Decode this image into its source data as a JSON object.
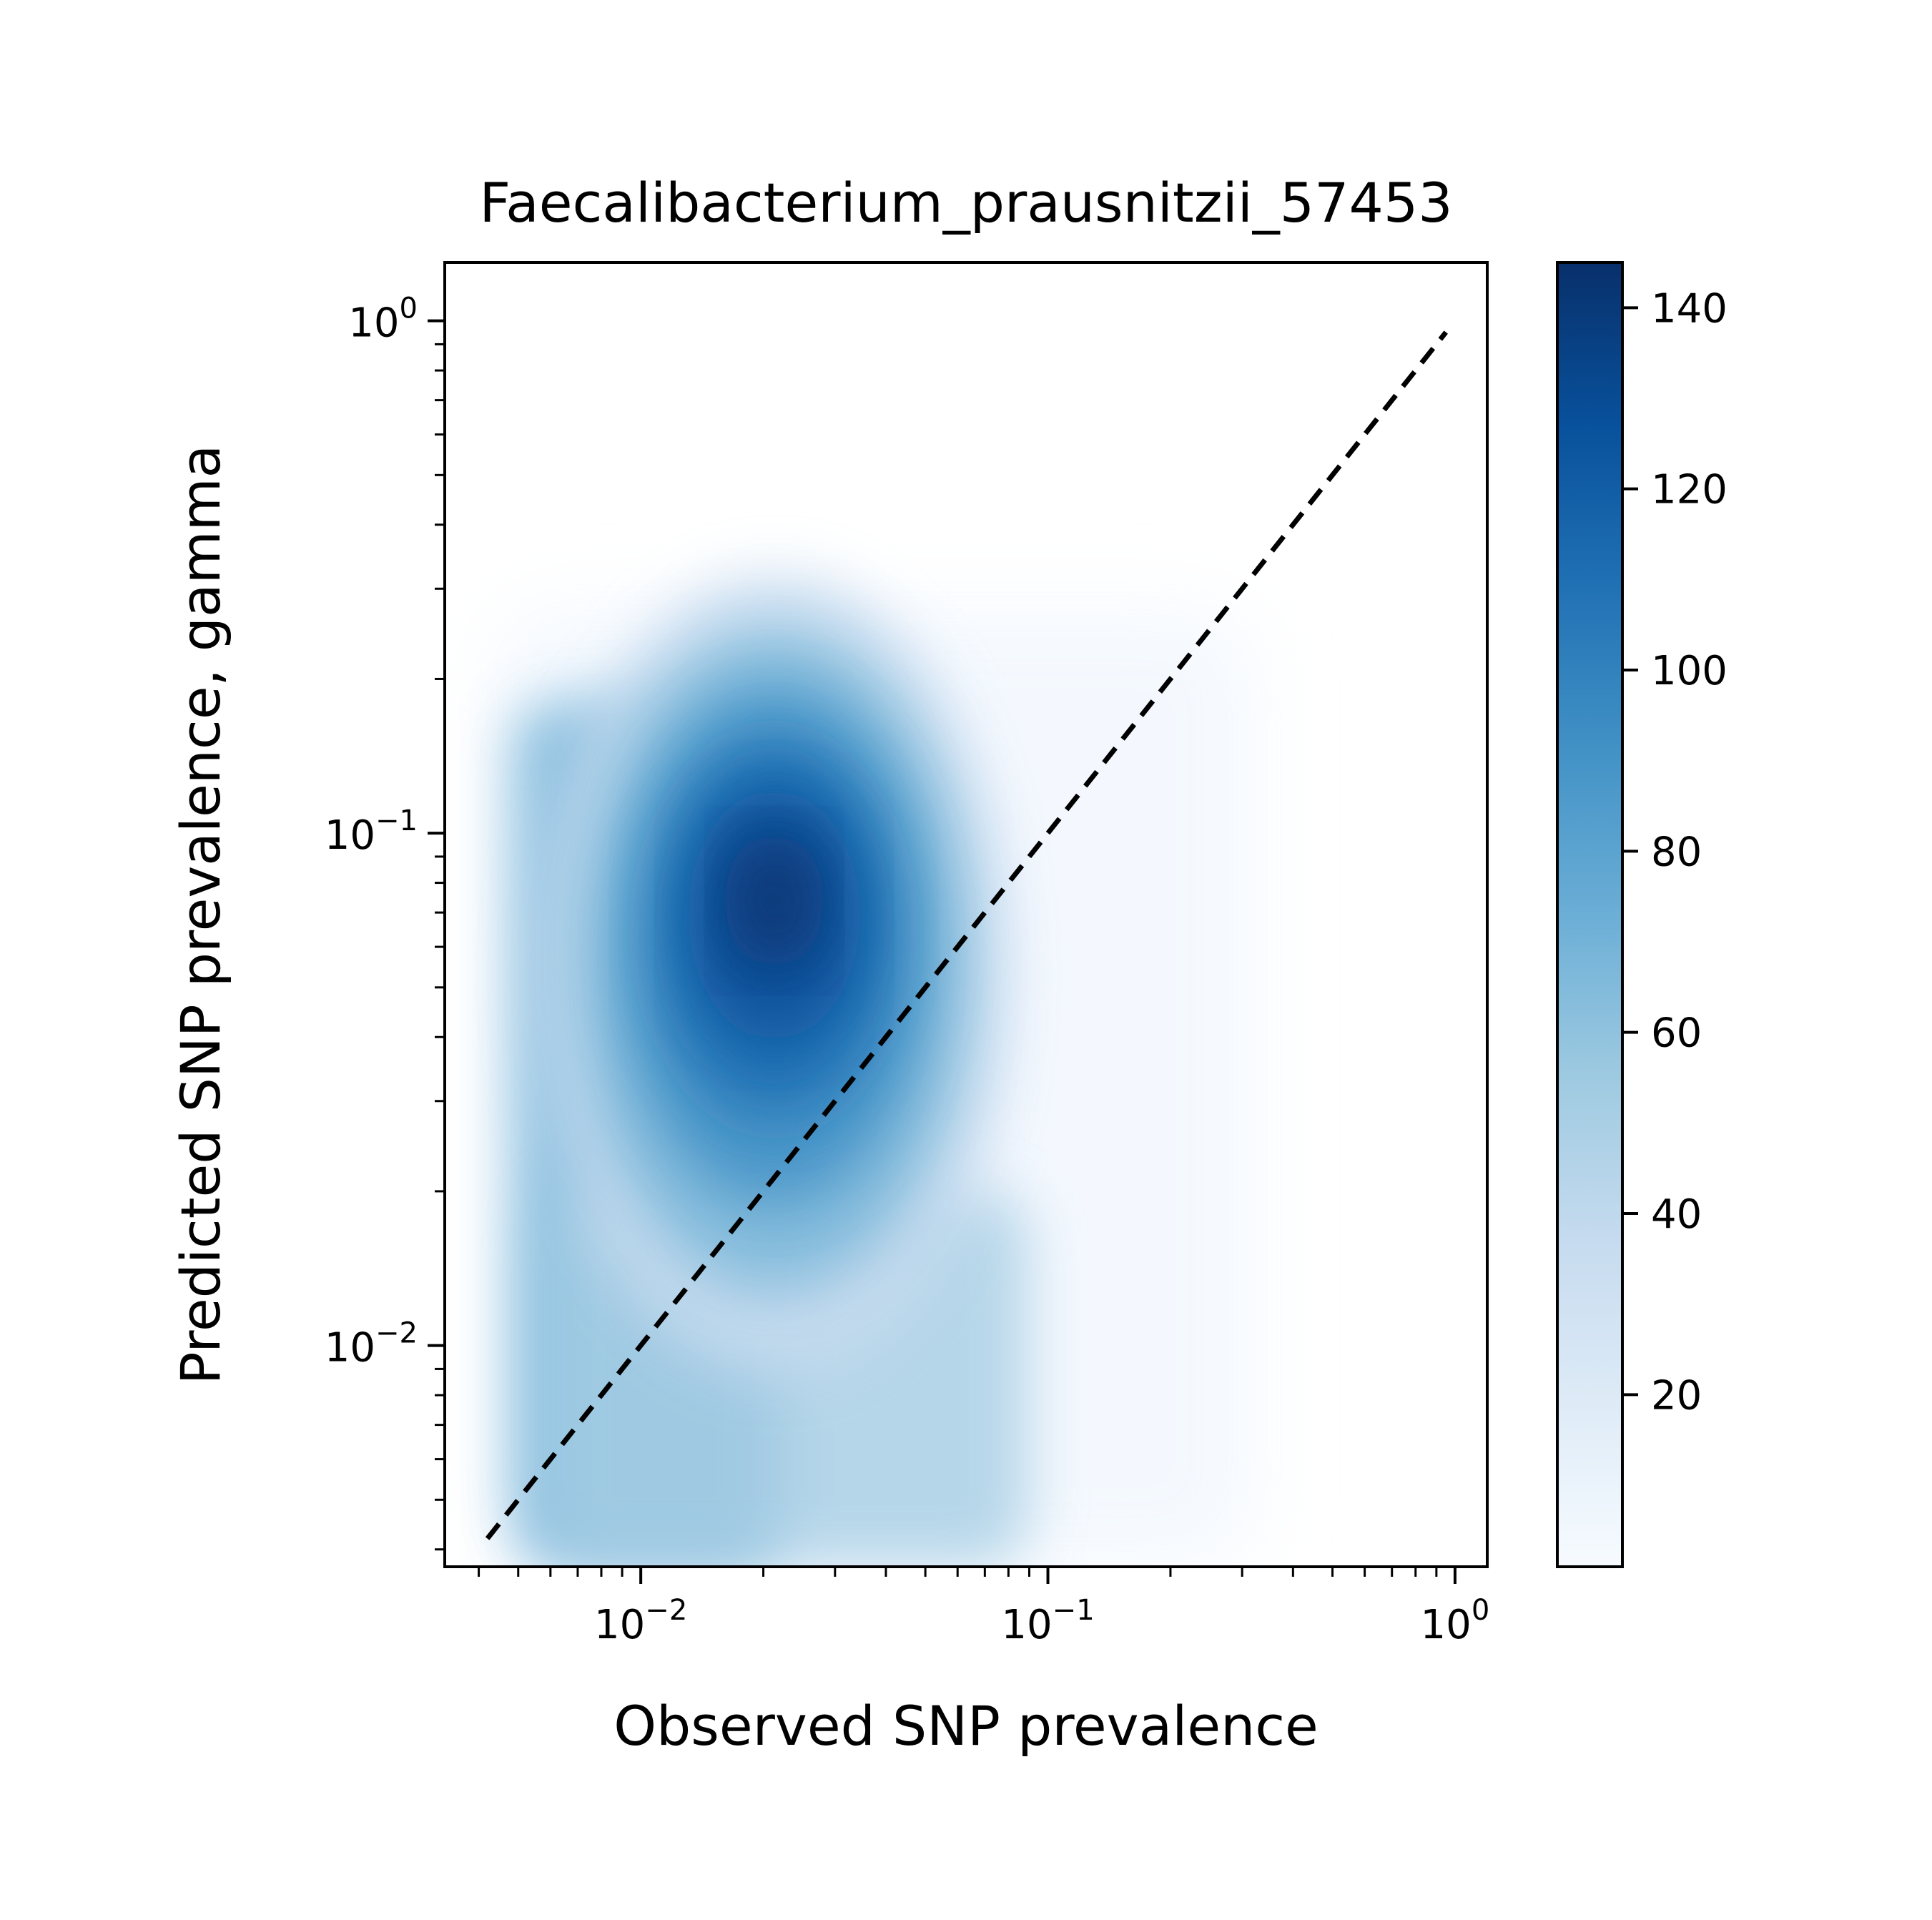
{
  "chart_data": {
    "type": "scatter",
    "title": "Faecalibacterium_prausnitzii_57453",
    "xlabel": "Observed SNP prevalence",
    "ylabel": "Predicted SNP prevalence, gamma",
    "xscale": "log",
    "yscale": "log",
    "xlim": [
      0.0033,
      1.2
    ],
    "ylim": [
      0.0037,
      1.3
    ],
    "grid": false,
    "legend": "none",
    "x_ticks": [
      {
        "base": "10",
        "exp": "−2",
        "value": 0.01
      },
      {
        "base": "10",
        "exp": "−1",
        "value": 0.1
      },
      {
        "base": "10",
        "exp": "0",
        "value": 1
      }
    ],
    "y_ticks": [
      {
        "base": "10",
        "exp": "−2",
        "value": 0.01
      },
      {
        "base": "10",
        "exp": "−1",
        "value": 0.1
      },
      {
        "base": "10",
        "exp": "0",
        "value": 1
      }
    ],
    "reference_line": {
      "style": "dashed",
      "color": "#000000",
      "x": [
        0.0042,
        0.95
      ],
      "y": [
        0.0042,
        0.95
      ]
    },
    "colorbar": {
      "colormap": "Blues",
      "range": [
        1,
        145
      ],
      "ticks": [
        {
          "value": 20,
          "label": "20"
        },
        {
          "value": 40,
          "label": "40"
        },
        {
          "value": 60,
          "label": "60"
        },
        {
          "value": 80,
          "label": "80"
        },
        {
          "value": 100,
          "label": "100"
        },
        {
          "value": 120,
          "label": "120"
        },
        {
          "value": 140,
          "label": "140"
        }
      ]
    },
    "density_summary": {
      "peak_location": {
        "x": 0.024,
        "y": 0.075
      },
      "peak_density": 145,
      "x_extent": [
        0.0045,
        0.32
      ],
      "y_extent": [
        0.0037,
        0.33
      ]
    }
  }
}
